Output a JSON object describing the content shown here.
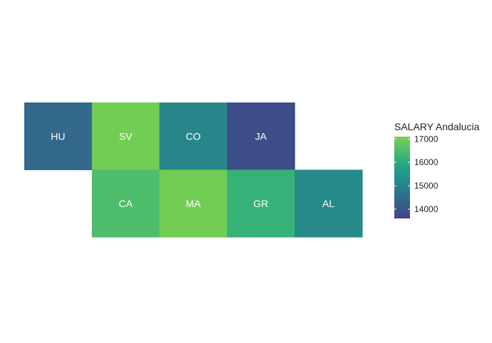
{
  "chart_data": {
    "type": "heatmap",
    "title": "",
    "tiles": [
      {
        "label": "HU",
        "row": 1,
        "col": 1,
        "value": 14400
      },
      {
        "label": "SV",
        "row": 1,
        "col": 2,
        "value": 17000
      },
      {
        "label": "CO",
        "row": 1,
        "col": 3,
        "value": 15100
      },
      {
        "label": "JA",
        "row": 1,
        "col": 4,
        "value": 13800
      },
      {
        "label": "CA",
        "row": 2,
        "col": 2,
        "value": 16500
      },
      {
        "label": "MA",
        "row": 2,
        "col": 3,
        "value": 17000
      },
      {
        "label": "GR",
        "row": 2,
        "col": 4,
        "value": 16200
      },
      {
        "label": "AL",
        "row": 2,
        "col": 5,
        "value": 15200
      }
    ],
    "legend": {
      "title": "SALARY Andalucia",
      "ticks": [
        17000,
        16000,
        15000,
        14000
      ],
      "range": [
        13600,
        17100
      ],
      "placement": "right"
    },
    "colors": {
      "low": "#414487",
      "mid_low": "#2A788E",
      "mid": "#22A884",
      "high": "#7AD151"
    }
  }
}
